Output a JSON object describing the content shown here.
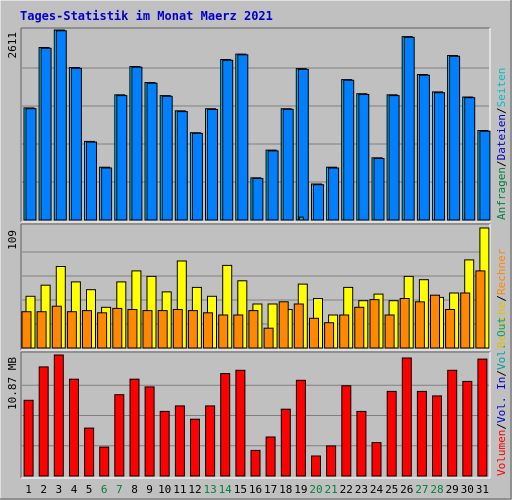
{
  "title": "Tages-Statistik im Monat Maerz 2021",
  "colors": {
    "background": "#C0C0C0",
    "title": "#0000D0",
    "grid": "#808080",
    "hits": "#00CCFF",
    "files": "#0080FF",
    "pages": "#00C0C0",
    "visits": "#FFFF00",
    "sites": "#FF8800",
    "kbytes": "#FF0000",
    "weekday_label": "#000000",
    "weekend_label": "#008040",
    "legend_anfragen": "#008040",
    "legend_dateien": "#0000C0",
    "legend_seiten": "#00C0C0",
    "legend_besuche": "#E0C000",
    "legend_rechner": "#FF8800",
    "legend_volumen": "#FF0000",
    "legend_slash": "#000000",
    "legend_volout": "#00A0A0",
    "legend_volin": "#0000C0"
  },
  "chart_data": [
    {
      "type": "bar",
      "name": "hits-panel",
      "ymax_label": "2611",
      "ymax": 2611,
      "categories": [
        "1",
        "2",
        "3",
        "4",
        "5",
        "6",
        "7",
        "8",
        "9",
        "10",
        "11",
        "12",
        "13",
        "14",
        "15",
        "16",
        "17",
        "18",
        "19",
        "20",
        "21",
        "22",
        "23",
        "24",
        "25",
        "26",
        "27",
        "28",
        "29",
        "30",
        "31"
      ],
      "legend": [
        {
          "text": "Anfragen",
          "color": "legend_anfragen"
        },
        {
          "text": "/",
          "color": "legend_slash"
        },
        {
          "text": "Dateien",
          "color": "legend_dateien"
        },
        {
          "text": "/",
          "color": "legend_slash"
        },
        {
          "text": "Seiten",
          "color": "legend_seiten"
        }
      ],
      "series": [
        {
          "key": "anfragen",
          "color": "hits",
          "values": [
            1540,
            2370,
            2611,
            2095,
            1080,
            725,
            1720,
            2110,
            1890,
            1710,
            1500,
            1200,
            1530,
            2205,
            2280,
            580,
            960,
            1530,
            2080,
            495,
            725,
            1930,
            1735,
            855,
            1720,
            2520,
            2000,
            1760,
            2260,
            1690,
            1230
          ]
        },
        {
          "key": "dateien",
          "color": "files",
          "values": [
            1530,
            2360,
            2600,
            2085,
            1070,
            715,
            1710,
            2100,
            1880,
            1700,
            1490,
            1190,
            1520,
            2195,
            2270,
            570,
            950,
            1520,
            2070,
            485,
            715,
            1920,
            1725,
            845,
            1710,
            2510,
            1990,
            1750,
            2250,
            1680,
            1220
          ]
        },
        {
          "key": "seiten",
          "color": "pages",
          "values": [
            0,
            0,
            0,
            0,
            0,
            0,
            0,
            0,
            0,
            0,
            0,
            0,
            0,
            0,
            0,
            0,
            0,
            0,
            40,
            0,
            0,
            0,
            0,
            0,
            0,
            0,
            0,
            0,
            0,
            0,
            0
          ]
        }
      ]
    },
    {
      "type": "bar",
      "name": "visits-panel",
      "ymax_label": "109",
      "ymax": 109,
      "categories": [
        "1",
        "2",
        "3",
        "4",
        "5",
        "6",
        "7",
        "8",
        "9",
        "10",
        "11",
        "12",
        "13",
        "14",
        "15",
        "16",
        "17",
        "18",
        "19",
        "20",
        "21",
        "22",
        "23",
        "24",
        "25",
        "26",
        "27",
        "28",
        "29",
        "30",
        "31"
      ],
      "legend": [
        {
          "text": "Besuche",
          "color": "legend_besuche"
        },
        {
          "text": "/",
          "color": "legend_slash"
        },
        {
          "text": "Rechner",
          "color": "legend_rechner"
        }
      ],
      "series": [
        {
          "key": "besuche",
          "color": "visits",
          "values": [
            47,
            57,
            74,
            60,
            53,
            37,
            60,
            70,
            65,
            51,
            79,
            55,
            47,
            75,
            61,
            40,
            40,
            35,
            58,
            45,
            30,
            55,
            43,
            49,
            43,
            65,
            62,
            46,
            50,
            80,
            109
          ]
        },
        {
          "key": "rechner",
          "color": "sites",
          "values": [
            33,
            33,
            38,
            33,
            34,
            32,
            36,
            35,
            34,
            34,
            35,
            34,
            32,
            30,
            30,
            34,
            18,
            42,
            40,
            27,
            23,
            30,
            37,
            44,
            30,
            45,
            42,
            48,
            35,
            50,
            70
          ]
        }
      ]
    },
    {
      "type": "bar",
      "name": "volume-panel",
      "ymax_label": "10.87 MB",
      "ymax": 10.87,
      "categories": [
        "1",
        "2",
        "3",
        "4",
        "5",
        "6",
        "7",
        "8",
        "9",
        "10",
        "11",
        "12",
        "13",
        "14",
        "15",
        "16",
        "17",
        "18",
        "19",
        "20",
        "21",
        "22",
        "23",
        "24",
        "25",
        "26",
        "27",
        "28",
        "29",
        "30",
        "31"
      ],
      "legend": [
        {
          "text": "Volumen",
          "color": "legend_volumen"
        },
        {
          "text": "/",
          "color": "legend_slash"
        },
        {
          "text": "Vol. In",
          "color": "legend_volin"
        },
        {
          "text": "/",
          "color": "legend_slash"
        },
        {
          "text": "Vol. Out",
          "color": "legend_volout"
        }
      ],
      "series": [
        {
          "key": "volumen",
          "color": "kbytes",
          "values": [
            6.8,
            9.8,
            10.87,
            8.7,
            4.3,
            2.6,
            7.3,
            8.7,
            8.0,
            5.8,
            6.3,
            5.1,
            6.3,
            9.2,
            9.5,
            2.3,
            3.5,
            6.0,
            8.6,
            1.8,
            2.7,
            8.1,
            5.8,
            3.0,
            7.6,
            10.6,
            7.6,
            7.2,
            9.5,
            8.5,
            10.5
          ]
        }
      ]
    }
  ],
  "x_labels": [
    {
      "text": "1",
      "weekend": false
    },
    {
      "text": "2",
      "weekend": false
    },
    {
      "text": "3",
      "weekend": false
    },
    {
      "text": "4",
      "weekend": false
    },
    {
      "text": "5",
      "weekend": false
    },
    {
      "text": "6",
      "weekend": true
    },
    {
      "text": "7",
      "weekend": true
    },
    {
      "text": "8",
      "weekend": false
    },
    {
      "text": "9",
      "weekend": false
    },
    {
      "text": "10",
      "weekend": false
    },
    {
      "text": "11",
      "weekend": false
    },
    {
      "text": "12",
      "weekend": false
    },
    {
      "text": "13",
      "weekend": true
    },
    {
      "text": "14",
      "weekend": true
    },
    {
      "text": "15",
      "weekend": false
    },
    {
      "text": "16",
      "weekend": false
    },
    {
      "text": "17",
      "weekend": false
    },
    {
      "text": "18",
      "weekend": false
    },
    {
      "text": "19",
      "weekend": false
    },
    {
      "text": "20",
      "weekend": true
    },
    {
      "text": "21",
      "weekend": true
    },
    {
      "text": "22",
      "weekend": false
    },
    {
      "text": "23",
      "weekend": false
    },
    {
      "text": "24",
      "weekend": false
    },
    {
      "text": "25",
      "weekend": false
    },
    {
      "text": "26",
      "weekend": false
    },
    {
      "text": "27",
      "weekend": true
    },
    {
      "text": "28",
      "weekend": true
    },
    {
      "text": "29",
      "weekend": false
    },
    {
      "text": "30",
      "weekend": false
    },
    {
      "text": "31",
      "weekend": false
    }
  ]
}
